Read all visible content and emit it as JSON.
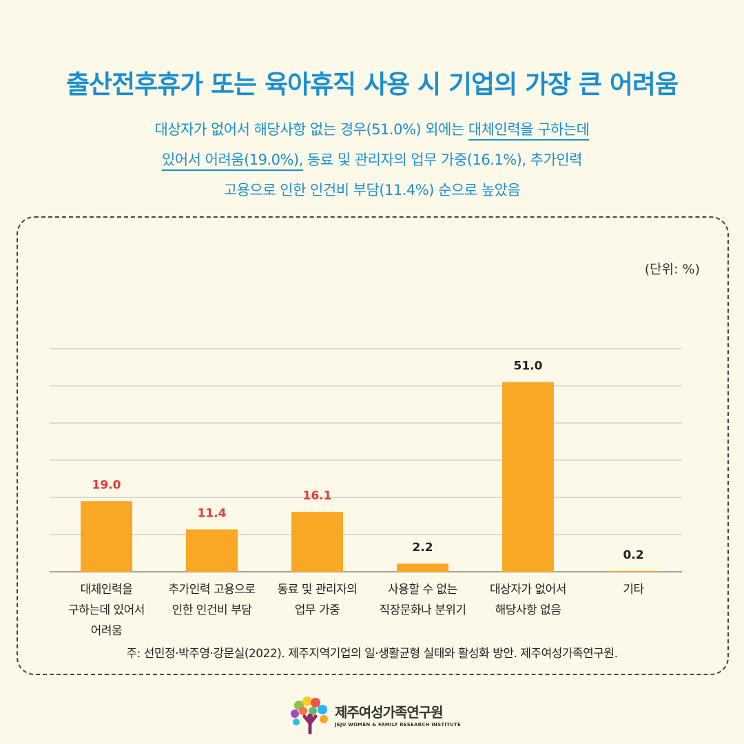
{
  "header": {
    "title": "출산전후휴가 또는 육아휴직 사용 시 기업의 가장 큰 어려움",
    "subtitle_line1_pre": "대상자가 없어서 해당사항 없는 경우(51.0%) 외에는 ",
    "subtitle_line1_ul": "대체인력을 구하는데",
    "subtitle_line2_ul": "있어서 어려움(19.0%),",
    "subtitle_line2_post": " 동료 및 관리자의 업무 가중(16.1%), 추가인력",
    "subtitle_line3": "고용으로 인한 인건비 부담(11.4%) 순으로 높았음"
  },
  "chart_data": {
    "type": "bar",
    "unit_label": "(단위: %)",
    "categories": [
      [
        "대체인력을",
        "구하는데 있어서",
        "어려움"
      ],
      [
        "추가인력 고용으로",
        "인한 인건비 부담"
      ],
      [
        "동료 및 관리자의",
        "업무 가중"
      ],
      [
        "사용할 수 없는",
        "직장문화나 분위기"
      ],
      [
        "대상자가 없어서",
        "해당사항 없음"
      ],
      [
        "기타"
      ]
    ],
    "values": [
      19.0,
      11.4,
      16.1,
      2.2,
      51.0,
      0.2
    ],
    "value_labels": [
      "19.0",
      "11.4",
      "16.1",
      "2.2",
      "51.0",
      "0.2"
    ],
    "highlight": [
      true,
      true,
      true,
      false,
      false,
      false
    ],
    "ylim": [
      0,
      60
    ],
    "grid": true,
    "colors": {
      "bar": "#f9a825",
      "highlight_label": "#e53935",
      "label": "#222222",
      "grid": "#bbbbbb"
    }
  },
  "footer": {
    "note": "주: 선민정·박주영·강문실(2022). 제주지역기업의 일·생활균형 실태와 활성화 방안. 제주여성가족연구원.",
    "logo_name": "제주여성가족연구원",
    "logo_sub": "JEJU WOMEN & FAMILY RESEARCH INSTITUTE"
  }
}
